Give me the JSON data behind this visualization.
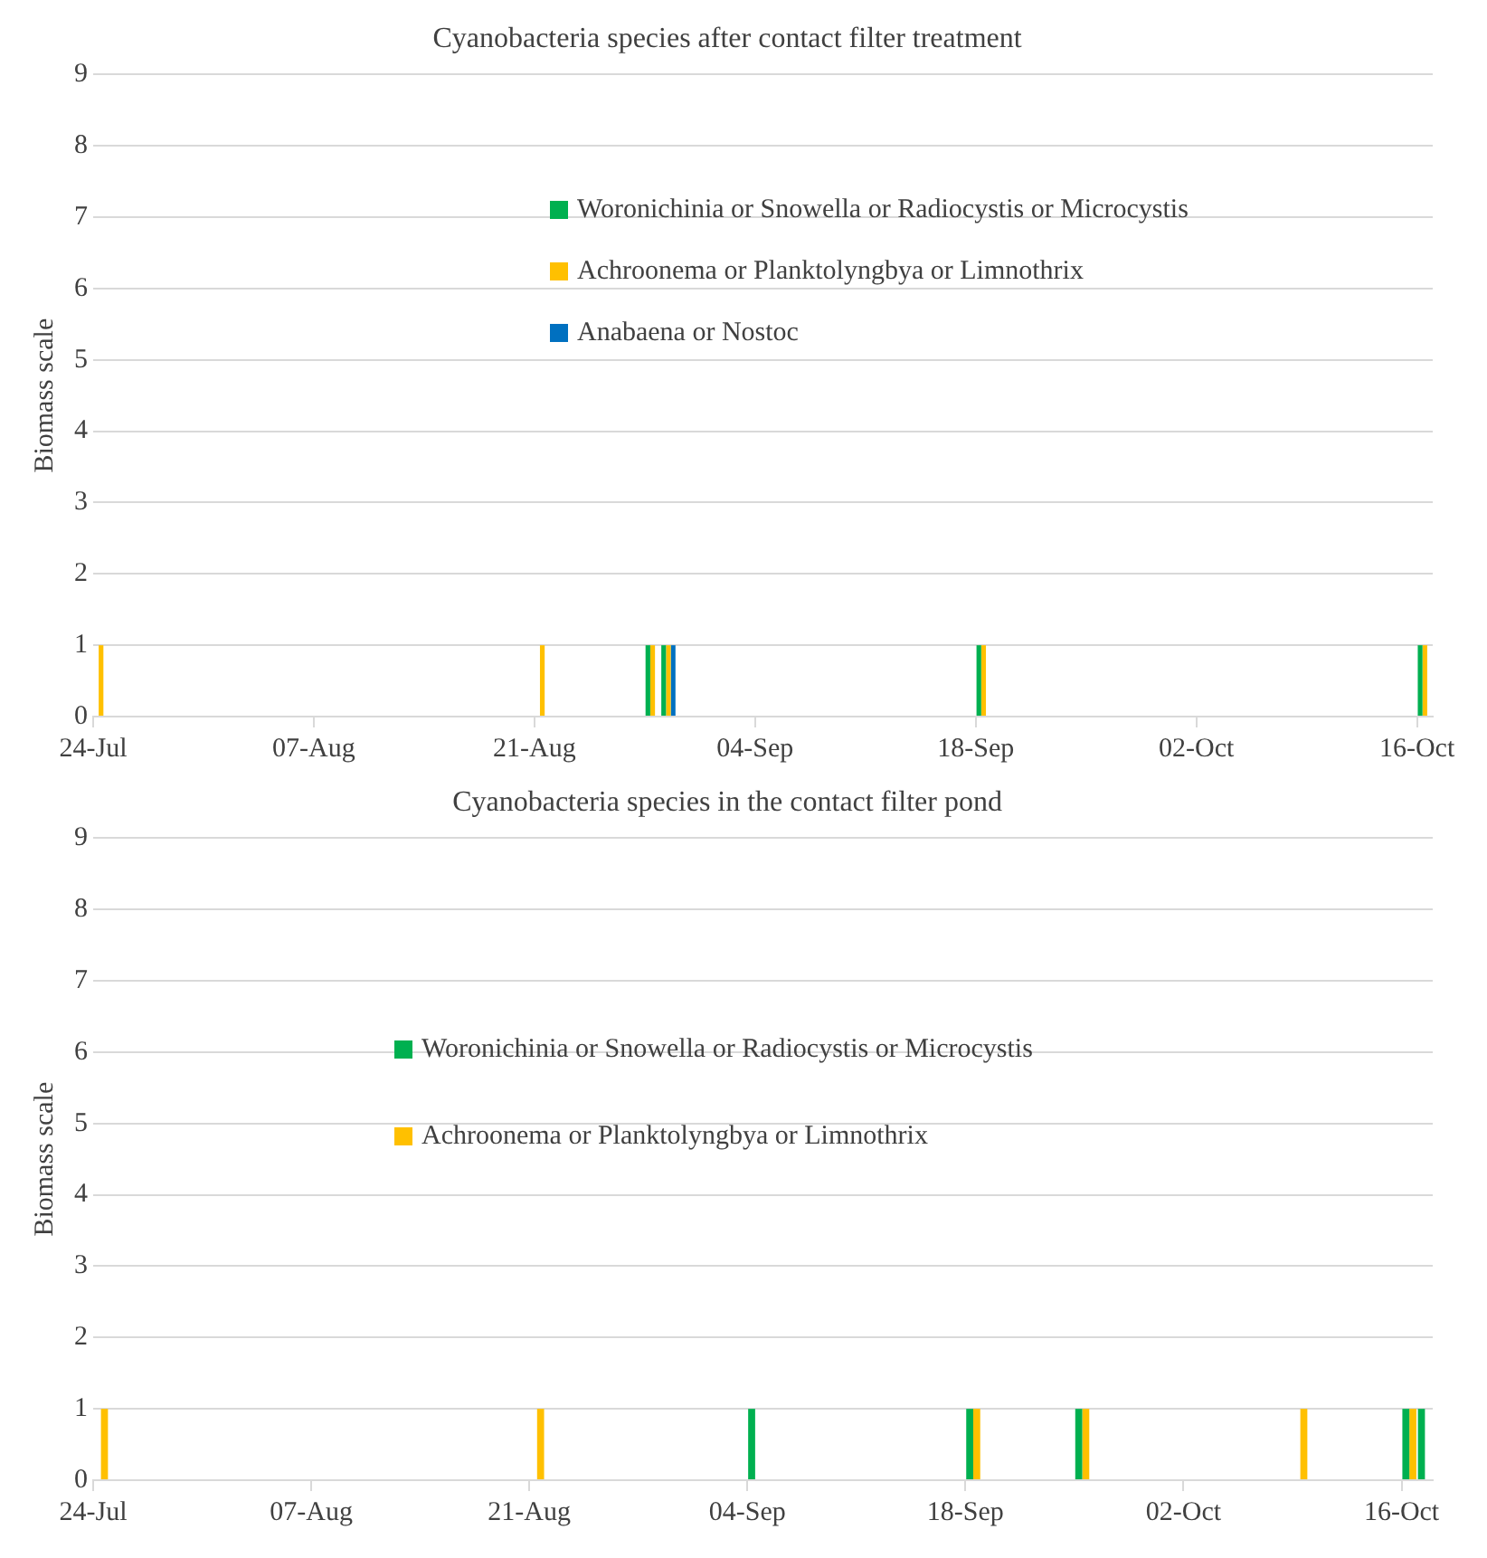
{
  "chart_data": [
    {
      "type": "bar",
      "title": "Cyanobacteria species after contact filter treatment",
      "ylabel": "Biomass scale",
      "xlim": [
        "--07-24",
        "--10-17"
      ],
      "xticks": [
        {
          "value": "--07-24",
          "label": "24-Jul"
        },
        {
          "value": "--08-07",
          "label": "07-Aug"
        },
        {
          "value": "--08-21",
          "label": "21-Aug"
        },
        {
          "value": "--09-04",
          "label": "04-Sep"
        },
        {
          "value": "--09-18",
          "label": "18-Sep"
        },
        {
          "value": "--10-02",
          "label": "02-Oct"
        },
        {
          "value": "--10-16",
          "label": "16-Oct"
        }
      ],
      "ylim": [
        0,
        9
      ],
      "yticks": [
        0,
        1,
        2,
        3,
        4,
        5,
        6,
        7,
        8,
        9
      ],
      "grid": "y",
      "legend": "top",
      "series": [
        {
          "name": "Woronichinia or Snowella or Radiocystis or Microcystis",
          "color": "#00b050",
          "x": [
            "--08-28",
            "--08-29",
            "--09-18",
            "--10-16"
          ],
          "values": [
            1,
            1,
            1,
            1
          ]
        },
        {
          "name": "Achroonema or Planktolyngbya or Limnothrix",
          "color": "#ffc000",
          "x": [
            "--07-24",
            "--08-21",
            "--08-28",
            "--08-29",
            "--09-18",
            "--10-16"
          ],
          "values": [
            1,
            1,
            1,
            1,
            1,
            1
          ]
        },
        {
          "name": "Anabaena or Nostoc",
          "color": "#0070c0",
          "x": [
            "--08-29"
          ],
          "values": [
            1
          ]
        }
      ]
    },
    {
      "type": "bar",
      "title": "Cyanobacteria species in the contact filter pond",
      "ylabel": "Biomass scale",
      "xlim": [
        "--07-24",
        "--10-18"
      ],
      "xticks": [
        {
          "value": "--07-24",
          "label": "24-Jul"
        },
        {
          "value": "--08-07",
          "label": "07-Aug"
        },
        {
          "value": "--08-21",
          "label": "21-Aug"
        },
        {
          "value": "--09-04",
          "label": "04-Sep"
        },
        {
          "value": "--09-18",
          "label": "18-Sep"
        },
        {
          "value": "--10-02",
          "label": "02-Oct"
        },
        {
          "value": "--10-16",
          "label": "16-Oct"
        }
      ],
      "ylim": [
        0,
        9
      ],
      "yticks": [
        0,
        1,
        2,
        3,
        4,
        5,
        6,
        7,
        8,
        9
      ],
      "grid": "y",
      "legend": "top",
      "series": [
        {
          "name": "Woronichinia or Snowella or Radiocystis or Microcystis",
          "color": "#00b050",
          "x": [
            "--09-04",
            "--09-18",
            "--09-25",
            "--10-16",
            "--10-17"
          ],
          "values": [
            1,
            1,
            1,
            1,
            1
          ]
        },
        {
          "name": "Achroonema or Planktolyngbya or Limnothrix",
          "color": "#ffc000",
          "x": [
            "--07-24",
            "--08-21",
            "--09-18",
            "--09-25",
            "--10-09",
            "--10-16"
          ],
          "values": [
            1,
            1,
            1,
            1,
            1,
            1
          ]
        }
      ]
    }
  ]
}
